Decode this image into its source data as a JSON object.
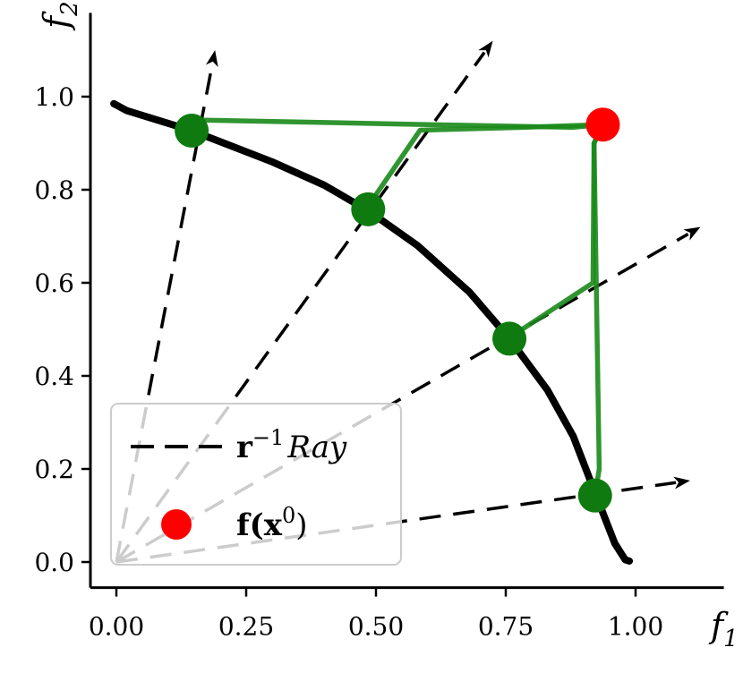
{
  "chart_data": {
    "type": "line",
    "xlabel": "f",
    "xlabel_sub": "1",
    "ylabel": "f",
    "ylabel_sub": "2",
    "xlim": [
      -0.05,
      1.17
    ],
    "ylim": [
      -0.055,
      1.18
    ],
    "x_ticks": [
      {
        "value": 0.0,
        "label": "0.00"
      },
      {
        "value": 0.25,
        "label": "0.25"
      },
      {
        "value": 0.5,
        "label": "0.50"
      },
      {
        "value": 0.75,
        "label": "0.75"
      },
      {
        "value": 1.0,
        "label": "1.00"
      }
    ],
    "y_ticks": [
      {
        "value": 0.0,
        "label": "0.0"
      },
      {
        "value": 0.2,
        "label": "0.2"
      },
      {
        "value": 0.4,
        "label": "0.4"
      },
      {
        "value": 0.6,
        "label": "0.6"
      },
      {
        "value": 0.8,
        "label": "0.8"
      },
      {
        "value": 1.0,
        "label": "1.0"
      }
    ],
    "grid": false,
    "pareto_front": {
      "color": "#000000",
      "points": [
        [
          -0.005,
          0.985
        ],
        [
          0.02,
          0.97
        ],
        [
          0.145,
          0.927
        ],
        [
          0.3,
          0.86
        ],
        [
          0.4,
          0.81
        ],
        [
          0.485,
          0.755
        ],
        [
          0.58,
          0.68
        ],
        [
          0.68,
          0.58
        ],
        [
          0.757,
          0.48
        ],
        [
          0.83,
          0.37
        ],
        [
          0.88,
          0.27
        ],
        [
          0.925,
          0.14
        ],
        [
          0.96,
          0.04
        ],
        [
          0.98,
          0.005
        ],
        [
          0.988,
          0.002
        ]
      ]
    },
    "rays": [
      {
        "angle_deg": 81,
        "end": [
          0.19,
          1.1
        ]
      },
      {
        "angle_deg": 57.5,
        "end": [
          0.725,
          1.12
        ]
      },
      {
        "angle_deg": 32.5,
        "end": [
          1.125,
          0.72
        ]
      },
      {
        "angle_deg": 9,
        "end": [
          1.105,
          0.175
        ]
      }
    ],
    "start_point": {
      "x": 0.937,
      "y": 0.94,
      "color": "#ff0000"
    },
    "optimization_paths": {
      "color": "#1a8a1a",
      "paths": [
        [
          [
            0.937,
            0.94
          ],
          [
            0.88,
            0.934
          ],
          [
            0.6,
            0.94
          ],
          [
            0.145,
            0.95
          ]
        ],
        [
          [
            0.937,
            0.94
          ],
          [
            0.78,
            0.934
          ],
          [
            0.585,
            0.928
          ],
          [
            0.485,
            0.765
          ]
        ],
        [
          [
            0.937,
            0.94
          ],
          [
            0.92,
            0.9
          ],
          [
            0.918,
            0.6
          ],
          [
            0.757,
            0.482
          ]
        ],
        [
          [
            0.937,
            0.94
          ],
          [
            0.92,
            0.9
          ],
          [
            0.93,
            0.2
          ],
          [
            0.922,
            0.145
          ]
        ]
      ]
    },
    "solutions": {
      "color": "#0f7a0f",
      "points": [
        [
          0.145,
          0.927
        ],
        [
          0.485,
          0.758
        ],
        [
          0.757,
          0.48
        ],
        [
          0.922,
          0.143
        ]
      ]
    },
    "legend": {
      "position": "lower-left",
      "entries": [
        {
          "label": "r",
          "superscript": "−1",
          "suffix": "Ray",
          "style": "dashed-line",
          "color": "#000000"
        },
        {
          "label": "f(x",
          "superscript": "0",
          "suffix": ")",
          "style": "marker",
          "color": "#ff0000"
        }
      ]
    }
  }
}
